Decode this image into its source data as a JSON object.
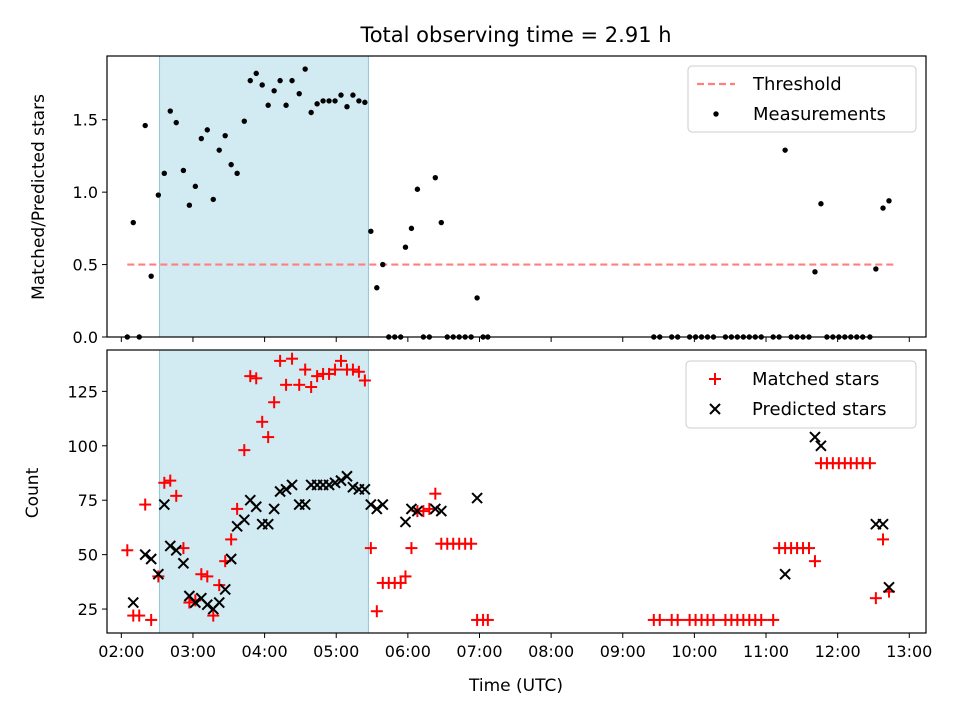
{
  "chart_data": [
    {
      "type": "scatter",
      "title": "Total observing time = 2.91 h",
      "xlabel": "",
      "ylabel": "Matched/Predicted stars",
      "xlim": [
        "01:48",
        "13:14"
      ],
      "ylim": [
        0,
        1.94
      ],
      "y_ticks": [
        "0.0",
        "0.5",
        "1.0",
        "1.5"
      ],
      "x_ticks": [
        "02:00",
        "03:00",
        "04:00",
        "05:00",
        "06:00",
        "07:00",
        "08:00",
        "09:00",
        "10:00",
        "11:00",
        "12:00",
        "13:00"
      ],
      "x_tick_labels_visible": false,
      "shaded_span": {
        "start": "02:32",
        "end": "05:27",
        "color": "#add8e6"
      },
      "legend_position": "upper right",
      "series": [
        {
          "name": "Threshold",
          "kind": "dashed-line",
          "color": "#ff7f7f",
          "points": [
            [
              "02:05",
              0.5
            ],
            [
              "12:47",
              0.5
            ]
          ]
        },
        {
          "name": "Measurements",
          "kind": "points",
          "color": "#000000",
          "points": [
            [
              "02:05",
              0.0
            ],
            [
              "02:10",
              0.79
            ],
            [
              "02:15",
              0.0
            ],
            [
              "02:20",
              1.46
            ],
            [
              "02:25",
              0.42
            ],
            [
              "02:31",
              0.98
            ],
            [
              "02:36",
              1.13
            ],
            [
              "02:41",
              1.56
            ],
            [
              "02:46",
              1.48
            ],
            [
              "02:52",
              1.15
            ],
            [
              "02:57",
              0.91
            ],
            [
              "03:02",
              1.04
            ],
            [
              "03:07",
              1.37
            ],
            [
              "03:12",
              1.43
            ],
            [
              "03:17",
              0.95
            ],
            [
              "03:22",
              1.29
            ],
            [
              "03:27",
              1.39
            ],
            [
              "03:32",
              1.19
            ],
            [
              "03:37",
              1.13
            ],
            [
              "03:43",
              1.49
            ],
            [
              "03:48",
              1.77
            ],
            [
              "03:53",
              1.82
            ],
            [
              "03:58",
              1.74
            ],
            [
              "04:03",
              1.6
            ],
            [
              "04:08",
              1.7
            ],
            [
              "04:13",
              1.77
            ],
            [
              "04:18",
              1.6
            ],
            [
              "04:23",
              1.77
            ],
            [
              "04:29",
              1.68
            ],
            [
              "04:34",
              1.85
            ],
            [
              "04:39",
              1.55
            ],
            [
              "04:44",
              1.61
            ],
            [
              "04:49",
              1.63
            ],
            [
              "04:54",
              1.63
            ],
            [
              "04:59",
              1.63
            ],
            [
              "05:04",
              1.67
            ],
            [
              "05:09",
              1.59
            ],
            [
              "05:14",
              1.67
            ],
            [
              "05:19",
              1.63
            ],
            [
              "05:24",
              1.62
            ],
            [
              "05:29",
              0.73
            ],
            [
              "05:34",
              0.34
            ],
            [
              "05:39",
              0.5
            ],
            [
              "05:44",
              0.0
            ],
            [
              "05:49",
              0.0
            ],
            [
              "05:54",
              0.0
            ],
            [
              "05:58",
              0.62
            ],
            [
              "06:03",
              0.75
            ],
            [
              "06:08",
              1.02
            ],
            [
              "06:13",
              0.0
            ],
            [
              "06:18",
              0.0
            ],
            [
              "06:23",
              1.1
            ],
            [
              "06:28",
              0.79
            ],
            [
              "06:33",
              0.0
            ],
            [
              "06:38",
              0.0
            ],
            [
              "06:43",
              0.0
            ],
            [
              "06:48",
              0.0
            ],
            [
              "06:53",
              0.0
            ],
            [
              "06:58",
              0.27
            ],
            [
              "07:03",
              0.0
            ],
            [
              "07:07",
              0.0
            ],
            [
              "09:26",
              0.0
            ],
            [
              "09:31",
              0.0
            ],
            [
              "09:41",
              0.0
            ],
            [
              "09:46",
              0.0
            ],
            [
              "09:56",
              0.0
            ],
            [
              "10:01",
              0.0
            ],
            [
              "10:06",
              0.0
            ],
            [
              "10:11",
              0.0
            ],
            [
              "10:16",
              0.0
            ],
            [
              "10:26",
              0.0
            ],
            [
              "10:31",
              0.0
            ],
            [
              "10:36",
              0.0
            ],
            [
              "10:41",
              0.0
            ],
            [
              "10:46",
              0.0
            ],
            [
              "10:51",
              0.0
            ],
            [
              "10:56",
              0.0
            ],
            [
              "11:06",
              0.0
            ],
            [
              "11:11",
              0.0
            ],
            [
              "11:16",
              1.29
            ],
            [
              "11:21",
              0.0
            ],
            [
              "11:26",
              0.0
            ],
            [
              "11:31",
              0.0
            ],
            [
              "11:36",
              0.0
            ],
            [
              "11:41",
              0.45
            ],
            [
              "11:46",
              0.92
            ],
            [
              "11:51",
              0.0
            ],
            [
              "11:56",
              0.0
            ],
            [
              "12:01",
              0.0
            ],
            [
              "12:06",
              0.0
            ],
            [
              "12:11",
              0.0
            ],
            [
              "12:16",
              0.0
            ],
            [
              "12:21",
              0.0
            ],
            [
              "12:27",
              0.0
            ],
            [
              "12:32",
              0.47
            ],
            [
              "12:38",
              0.89
            ],
            [
              "12:43",
              0.94
            ]
          ]
        }
      ]
    },
    {
      "type": "scatter",
      "title": "",
      "xlabel": "Time (UTC)",
      "ylabel": "Count",
      "xlim": [
        "01:48",
        "13:14"
      ],
      "ylim": [
        14,
        144
      ],
      "y_ticks": [
        "25",
        "50",
        "75",
        "100",
        "125"
      ],
      "x_ticks": [
        "02:00",
        "03:00",
        "04:00",
        "05:00",
        "06:00",
        "07:00",
        "08:00",
        "09:00",
        "10:00",
        "11:00",
        "12:00",
        "13:00"
      ],
      "shaded_span": {
        "start": "02:32",
        "end": "05:27",
        "color": "#add8e6"
      },
      "legend_position": "upper right",
      "series": [
        {
          "name": "Matched stars",
          "kind": "plus",
          "color": "#ff0000",
          "points": [
            [
              "02:05",
              52
            ],
            [
              "02:10",
              22
            ],
            [
              "02:15",
              22
            ],
            [
              "02:20",
              73
            ],
            [
              "02:25",
              20
            ],
            [
              "02:31",
              40
            ],
            [
              "02:36",
              83
            ],
            [
              "02:41",
              84
            ],
            [
              "02:46",
              77
            ],
            [
              "02:52",
              53
            ],
            [
              "02:57",
              28
            ],
            [
              "03:02",
              29
            ],
            [
              "03:07",
              41
            ],
            [
              "03:12",
              40
            ],
            [
              "03:17",
              22
            ],
            [
              "03:22",
              36
            ],
            [
              "03:27",
              47
            ],
            [
              "03:32",
              57
            ],
            [
              "03:37",
              71
            ],
            [
              "03:43",
              98
            ],
            [
              "03:48",
              132
            ],
            [
              "03:53",
              131
            ],
            [
              "03:58",
              111
            ],
            [
              "04:03",
              104
            ],
            [
              "04:08",
              120
            ],
            [
              "04:13",
              139
            ],
            [
              "04:18",
              128
            ],
            [
              "04:23",
              140
            ],
            [
              "04:29",
              128
            ],
            [
              "04:34",
              135
            ],
            [
              "04:39",
              127
            ],
            [
              "04:44",
              132
            ],
            [
              "04:49",
              133
            ],
            [
              "04:54",
              133
            ],
            [
              "04:59",
              135
            ],
            [
              "05:04",
              139
            ],
            [
              "05:09",
              135
            ],
            [
              "05:14",
              135
            ],
            [
              "05:19",
              134
            ],
            [
              "05:24",
              130
            ],
            [
              "05:29",
              53
            ],
            [
              "05:34",
              24
            ],
            [
              "05:39",
              37
            ],
            [
              "05:44",
              37
            ],
            [
              "05:49",
              37
            ],
            [
              "05:54",
              37
            ],
            [
              "05:58",
              40
            ],
            [
              "06:03",
              53
            ],
            [
              "06:08",
              70
            ],
            [
              "06:13",
              70
            ],
            [
              "06:18",
              71
            ],
            [
              "06:23",
              78
            ],
            [
              "06:28",
              55
            ],
            [
              "06:33",
              55
            ],
            [
              "06:38",
              55
            ],
            [
              "06:43",
              55
            ],
            [
              "06:48",
              55
            ],
            [
              "06:53",
              55
            ],
            [
              "06:58",
              20
            ],
            [
              "07:03",
              20
            ],
            [
              "07:07",
              20
            ],
            [
              "09:26",
              20
            ],
            [
              "09:31",
              20
            ],
            [
              "09:41",
              20
            ],
            [
              "09:46",
              20
            ],
            [
              "09:56",
              20
            ],
            [
              "10:01",
              20
            ],
            [
              "10:06",
              20
            ],
            [
              "10:11",
              20
            ],
            [
              "10:16",
              20
            ],
            [
              "10:26",
              20
            ],
            [
              "10:31",
              20
            ],
            [
              "10:36",
              20
            ],
            [
              "10:41",
              20
            ],
            [
              "10:46",
              20
            ],
            [
              "10:51",
              20
            ],
            [
              "10:56",
              20
            ],
            [
              "11:06",
              20
            ],
            [
              "11:11",
              53
            ],
            [
              "11:16",
              53
            ],
            [
              "11:21",
              53
            ],
            [
              "11:26",
              53
            ],
            [
              "11:31",
              53
            ],
            [
              "11:36",
              53
            ],
            [
              "11:41",
              47
            ],
            [
              "11:46",
              92
            ],
            [
              "11:51",
              92
            ],
            [
              "11:56",
              92
            ],
            [
              "12:01",
              92
            ],
            [
              "12:06",
              92
            ],
            [
              "12:11",
              92
            ],
            [
              "12:16",
              92
            ],
            [
              "12:21",
              92
            ],
            [
              "12:27",
              92
            ],
            [
              "12:32",
              30
            ],
            [
              "12:38",
              57
            ],
            [
              "12:43",
              33
            ]
          ]
        },
        {
          "name": "Predicted stars",
          "kind": "cross",
          "color": "#000000",
          "points": [
            [
              "02:10",
              28
            ],
            [
              "02:20",
              50
            ],
            [
              "02:25",
              48
            ],
            [
              "02:31",
              41
            ],
            [
              "02:36",
              73
            ],
            [
              "02:41",
              54
            ],
            [
              "02:46",
              52
            ],
            [
              "02:52",
              46
            ],
            [
              "02:57",
              31
            ],
            [
              "03:02",
              28
            ],
            [
              "03:07",
              30
            ],
            [
              "03:12",
              27
            ],
            [
              "03:17",
              25
            ],
            [
              "03:22",
              28
            ],
            [
              "03:27",
              34
            ],
            [
              "03:32",
              48
            ],
            [
              "03:37",
              63
            ],
            [
              "03:43",
              66
            ],
            [
              "03:48",
              75
            ],
            [
              "03:53",
              72
            ],
            [
              "03:58",
              64
            ],
            [
              "04:03",
              64
            ],
            [
              "04:08",
              71
            ],
            [
              "04:13",
              79
            ],
            [
              "04:18",
              80
            ],
            [
              "04:23",
              82
            ],
            [
              "04:29",
              73
            ],
            [
              "04:34",
              73
            ],
            [
              "04:39",
              82
            ],
            [
              "04:44",
              82
            ],
            [
              "04:49",
              82
            ],
            [
              "04:54",
              82
            ],
            [
              "04:59",
              83
            ],
            [
              "05:04",
              84
            ],
            [
              "05:09",
              86
            ],
            [
              "05:14",
              81
            ],
            [
              "05:19",
              80
            ],
            [
              "05:24",
              80
            ],
            [
              "05:29",
              73
            ],
            [
              "05:34",
              71
            ],
            [
              "05:39",
              73
            ],
            [
              "05:58",
              65
            ],
            [
              "06:03",
              71
            ],
            [
              "06:08",
              70
            ],
            [
              "06:23",
              71
            ],
            [
              "06:28",
              70
            ],
            [
              "06:58",
              76
            ],
            [
              "11:16",
              41
            ],
            [
              "11:41",
              104
            ],
            [
              "11:46",
              100
            ],
            [
              "12:32",
              64
            ],
            [
              "12:38",
              64
            ],
            [
              "12:43",
              35
            ]
          ]
        }
      ]
    }
  ]
}
